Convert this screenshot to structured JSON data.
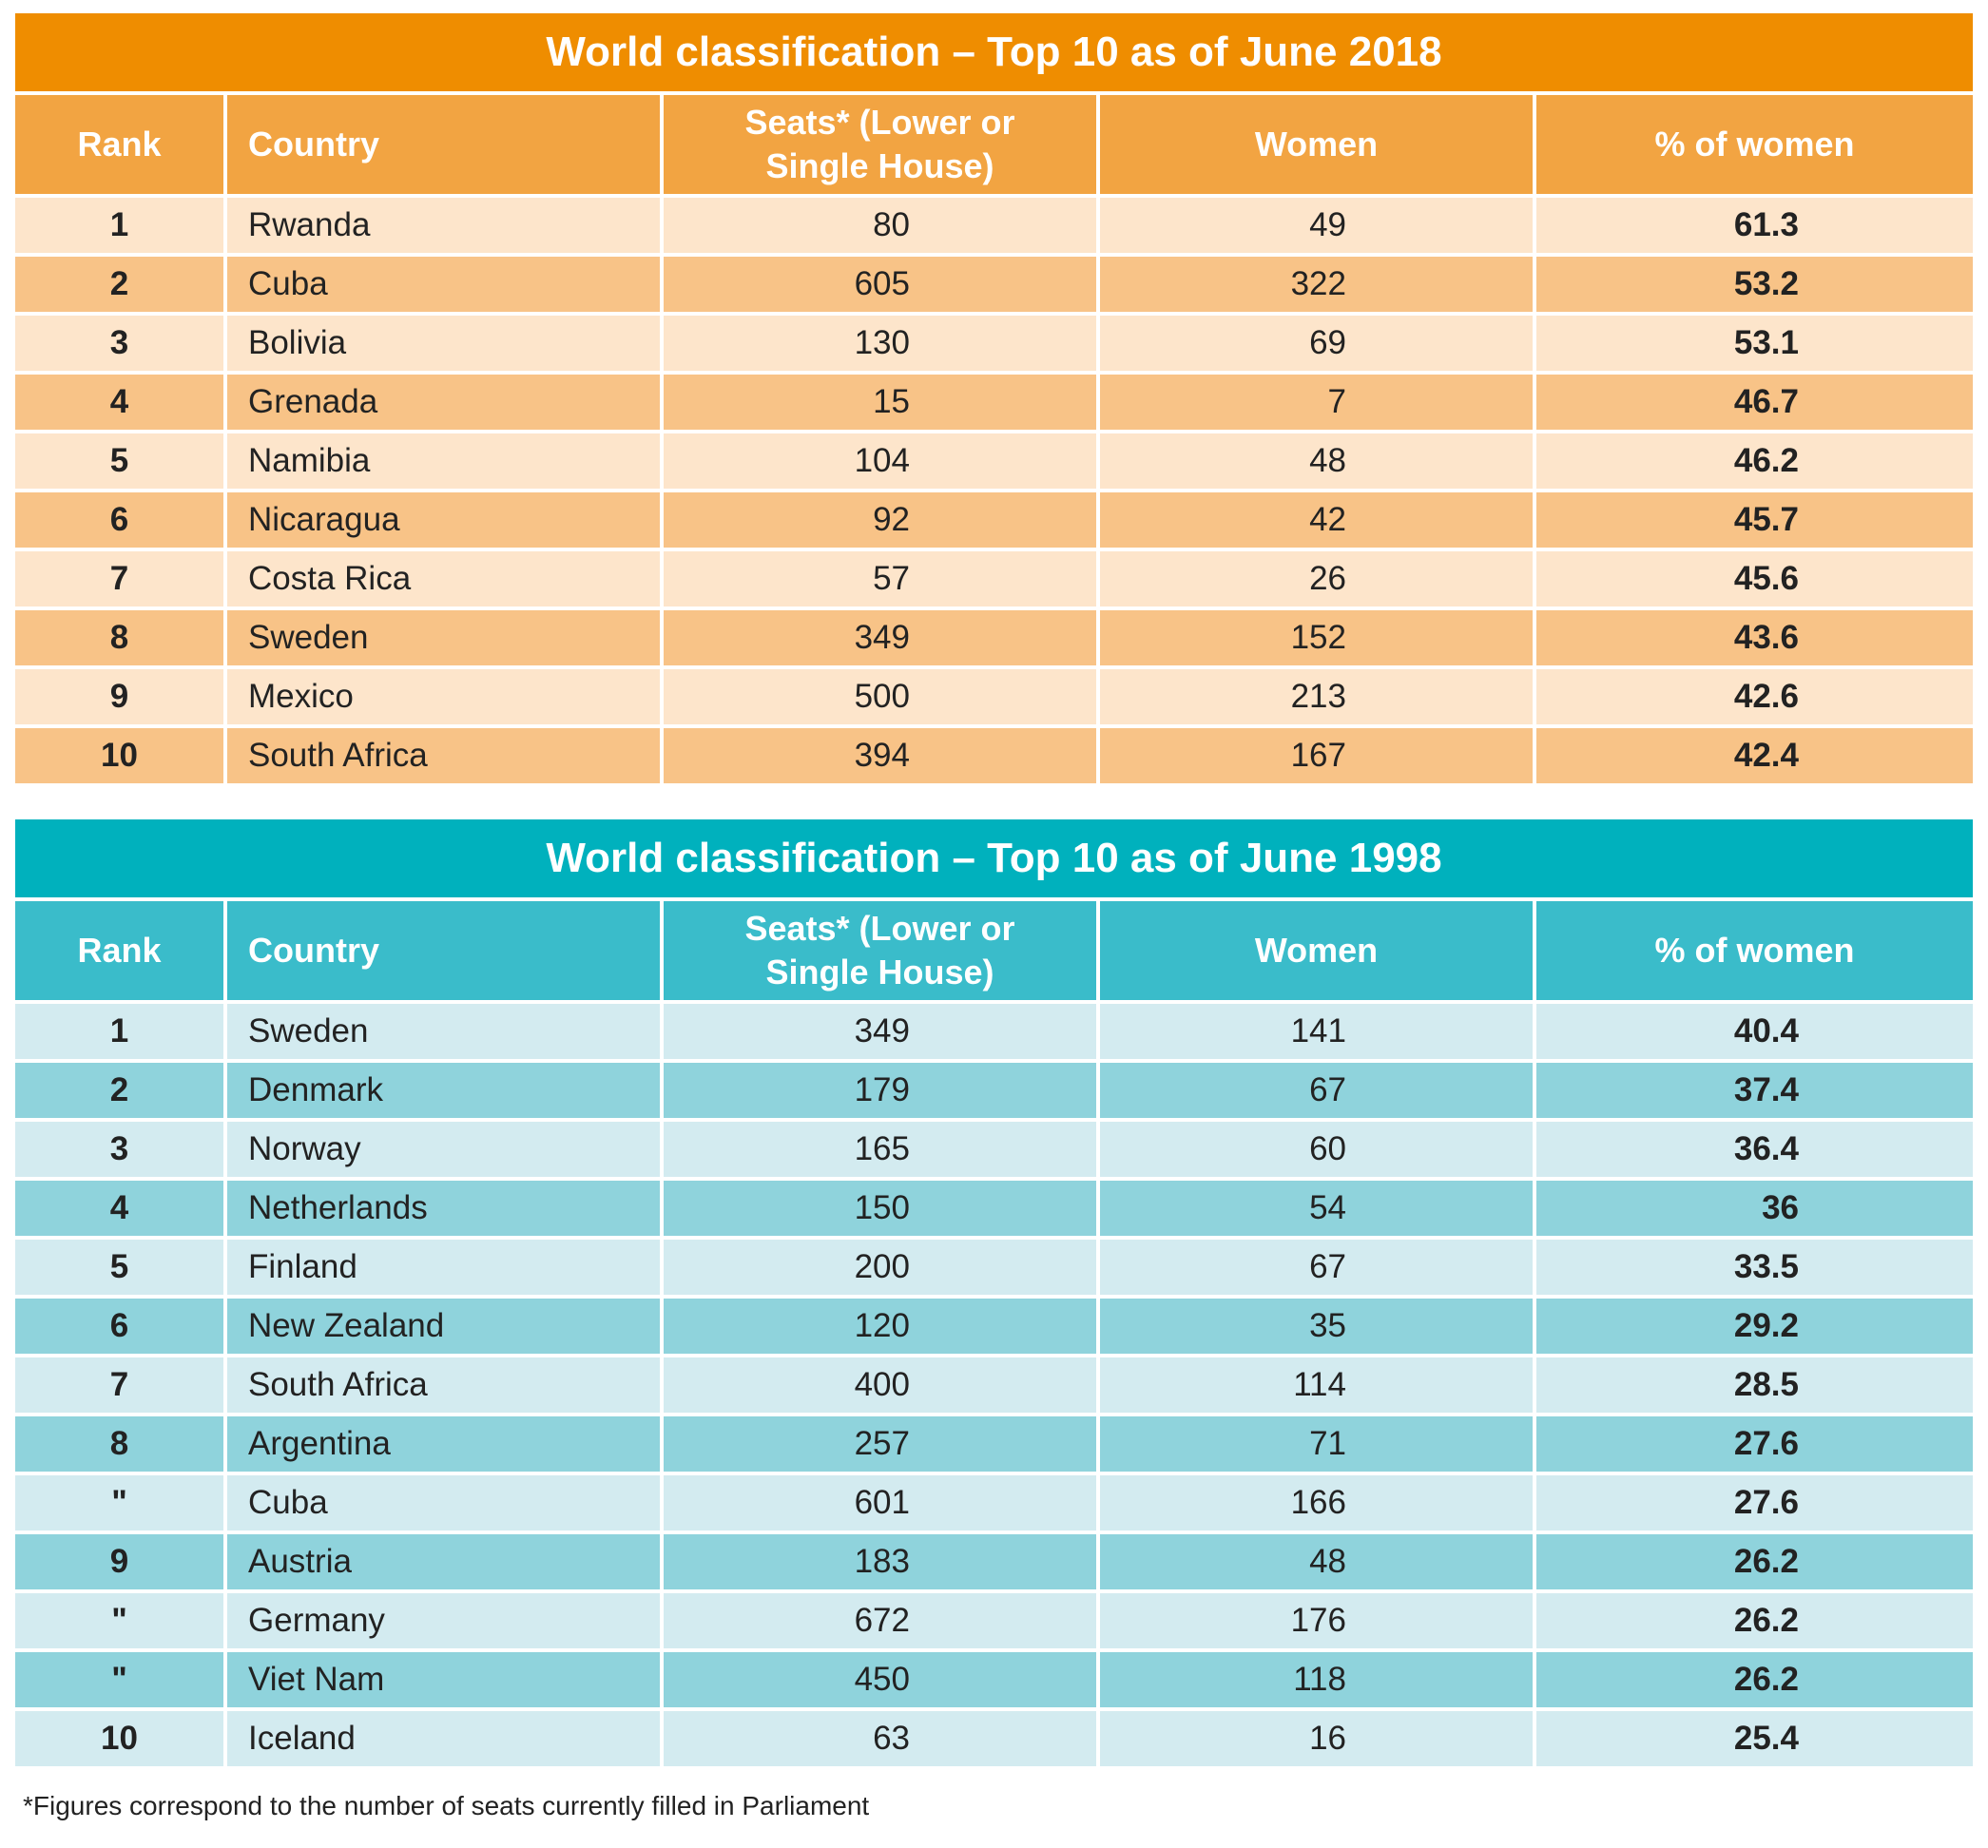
{
  "colors": {
    "orange_title": "#ef8d00",
    "orange_header": "#f2a442",
    "orange_row_light": "#fde5cb",
    "orange_row_dark": "#f8c387",
    "teal_title": "#00b1bd",
    "teal_header": "#3abcca",
    "teal_row_light": "#d3ebf0",
    "teal_row_dark": "#8fd3dc"
  },
  "table_2018": {
    "title": "World classification – Top 10 as of June 2018",
    "headers": {
      "rank": "Rank",
      "country": "Country",
      "seats": "Seats* (Lower or Single House)",
      "women": "Women",
      "pct": "% of women"
    },
    "rows": [
      {
        "rank": "1",
        "country": "Rwanda",
        "seats": "80",
        "women": "49",
        "pct": "61.3"
      },
      {
        "rank": "2",
        "country": "Cuba",
        "seats": "605",
        "women": "322",
        "pct": "53.2"
      },
      {
        "rank": "3",
        "country": "Bolivia",
        "seats": "130",
        "women": "69",
        "pct": "53.1"
      },
      {
        "rank": "4",
        "country": "Grenada",
        "seats": "15",
        "women": "7",
        "pct": "46.7"
      },
      {
        "rank": "5",
        "country": "Namibia",
        "seats": "104",
        "women": "48",
        "pct": "46.2"
      },
      {
        "rank": "6",
        "country": "Nicaragua",
        "seats": "92",
        "women": "42",
        "pct": "45.7"
      },
      {
        "rank": "7",
        "country": "Costa Rica",
        "seats": "57",
        "women": "26",
        "pct": "45.6"
      },
      {
        "rank": "8",
        "country": "Sweden",
        "seats": "349",
        "women": "152",
        "pct": "43.6"
      },
      {
        "rank": "9",
        "country": "Mexico",
        "seats": "500",
        "women": "213",
        "pct": "42.6"
      },
      {
        "rank": "10",
        "country": "South Africa",
        "seats": "394",
        "women": "167",
        "pct": "42.4"
      }
    ]
  },
  "table_1998": {
    "title": "World classification – Top 10 as of June 1998",
    "headers": {
      "rank": "Rank",
      "country": "Country",
      "seats": "Seats* (Lower or Single House)",
      "women": "Women",
      "pct": "% of women"
    },
    "rows": [
      {
        "rank": "1",
        "country": "Sweden",
        "seats": "349",
        "women": "141",
        "pct": "40.4"
      },
      {
        "rank": "2",
        "country": "Denmark",
        "seats": "179",
        "women": "67",
        "pct": "37.4"
      },
      {
        "rank": "3",
        "country": "Norway",
        "seats": "165",
        "women": "60",
        "pct": "36.4"
      },
      {
        "rank": "4",
        "country": "Netherlands",
        "seats": "150",
        "women": "54",
        "pct": "36"
      },
      {
        "rank": "5",
        "country": "Finland",
        "seats": "200",
        "women": "67",
        "pct": "33.5"
      },
      {
        "rank": "6",
        "country": "New Zealand",
        "seats": "120",
        "women": "35",
        "pct": "29.2"
      },
      {
        "rank": "7",
        "country": "South Africa",
        "seats": "400",
        "women": "114",
        "pct": "28.5"
      },
      {
        "rank": "8",
        "country": "Argentina",
        "seats": "257",
        "women": "71",
        "pct": "27.6"
      },
      {
        "rank": "\"",
        "country": "Cuba",
        "seats": "601",
        "women": "166",
        "pct": "27.6"
      },
      {
        "rank": "9",
        "country": "Austria",
        "seats": "183",
        "women": "48",
        "pct": "26.2"
      },
      {
        "rank": "\"",
        "country": "Germany",
        "seats": "672",
        "women": "176",
        "pct": "26.2"
      },
      {
        "rank": "\"",
        "country": "Viet Nam",
        "seats": "450",
        "women": "118",
        "pct": "26.2"
      },
      {
        "rank": "10",
        "country": "Iceland",
        "seats": "63",
        "women": "16",
        "pct": "25.4"
      }
    ]
  },
  "footnote": "*Figures correspond to the number of seats currently filled in Parliament"
}
